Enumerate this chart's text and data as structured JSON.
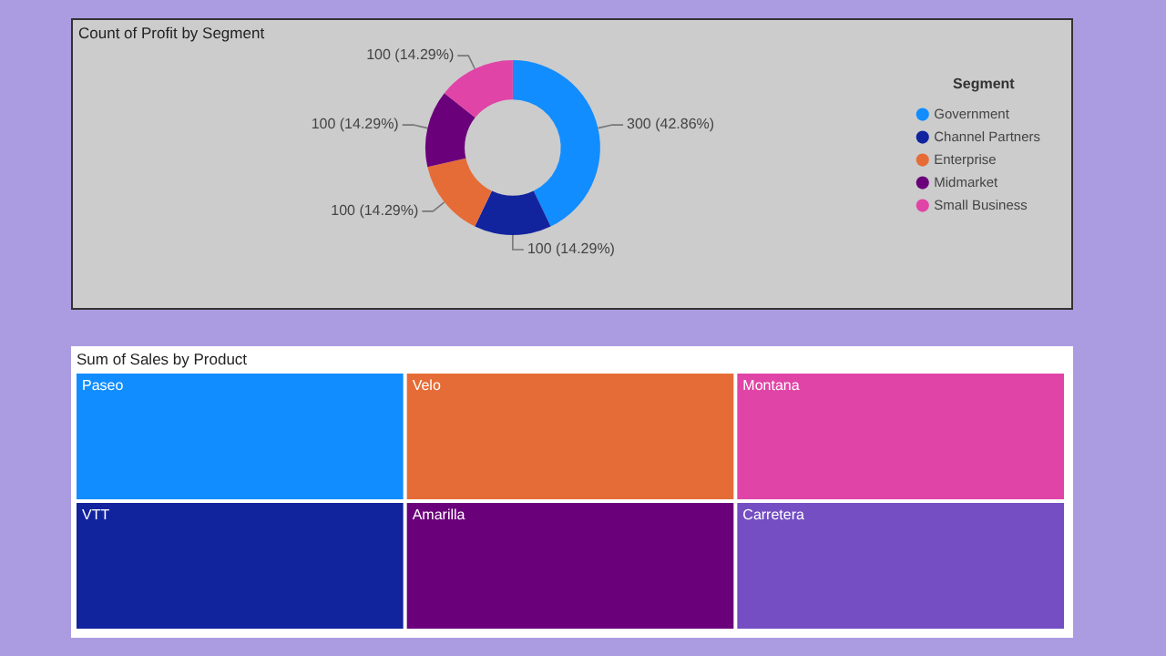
{
  "chart_data": [
    {
      "type": "donut",
      "title": "Count of Profit by Segment",
      "legend_title": "Segment",
      "legend": "right",
      "categories": [
        "Government",
        "Channel Partners",
        "Enterprise",
        "Midmarket",
        "Small Business"
      ],
      "values": [
        300,
        100,
        100,
        100,
        100
      ],
      "value_labels": [
        "300 (42.86%)",
        "100 (14.29%)",
        "100 (14.29%)",
        "100 (14.29%)",
        "100 (14.29%)"
      ],
      "colors": [
        "#118dff",
        "#12239e",
        "#e66c37",
        "#6b007b",
        "#e044a7"
      ]
    },
    {
      "type": "other",
      "title": "Sum of Sales by Product",
      "categories": [
        "Paseo",
        "VTT",
        "Velo",
        "Amarilla",
        "Montana",
        "Carretera"
      ],
      "colors": [
        "#118dff",
        "#12239e",
        "#e66c37",
        "#6b007b",
        "#e044a7",
        "#744ec2"
      ]
    }
  ]
}
